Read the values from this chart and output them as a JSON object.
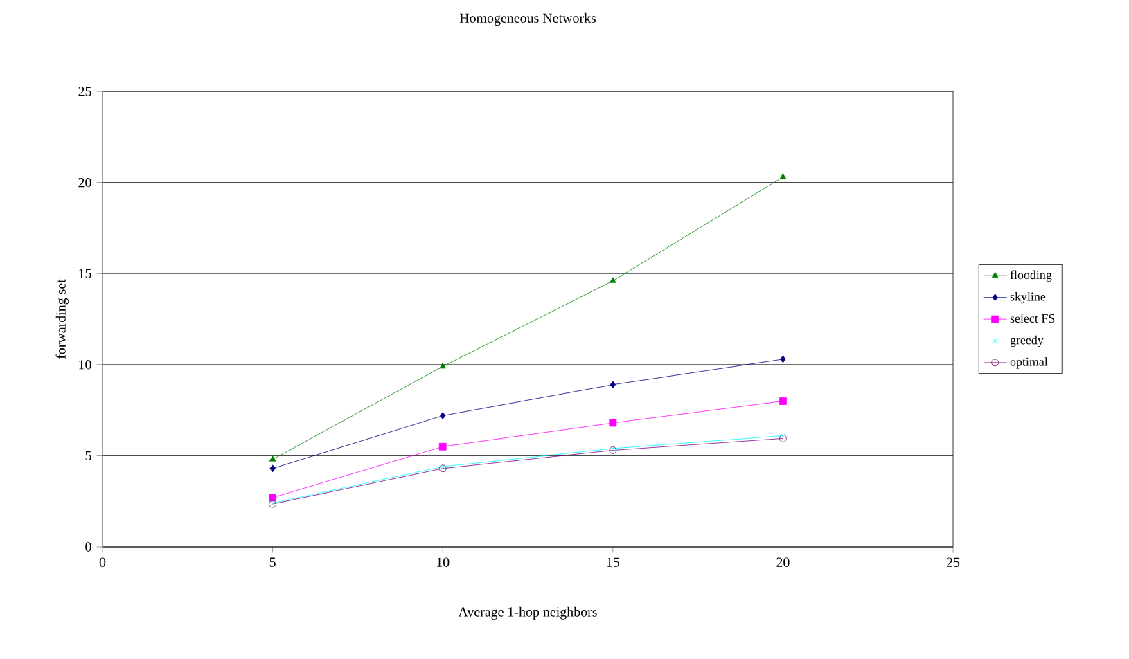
{
  "chart_data": {
    "type": "line",
    "title": "Homogeneous Networks",
    "xlabel": "Average 1-hop neighbors",
    "ylabel": "forwarding set",
    "x": [
      5,
      10,
      15,
      20
    ],
    "xlim": [
      0,
      25
    ],
    "xticks": [
      0,
      5,
      10,
      15,
      20,
      25
    ],
    "ylim": [
      0,
      25
    ],
    "yticks": [
      0,
      5,
      10,
      15,
      20,
      25
    ],
    "grid": "y",
    "legend": "right",
    "series": [
      {
        "name": "flooding",
        "color": "#008000",
        "marker": "triangle",
        "values": [
          4.8,
          9.9,
          14.6,
          20.3
        ]
      },
      {
        "name": "skyline",
        "color": "#000080",
        "marker": "diamond",
        "values": [
          4.3,
          7.2,
          8.9,
          10.3
        ]
      },
      {
        "name": "select FS",
        "color": "#ff00ff",
        "marker": "square",
        "values": [
          2.7,
          5.5,
          6.8,
          8.0
        ]
      },
      {
        "name": "greedy",
        "color": "#00ffff",
        "marker": "cross",
        "values": [
          2.4,
          4.4,
          5.4,
          6.1
        ]
      },
      {
        "name": "optimal",
        "color": "#800080",
        "marker": "circle",
        "values": [
          2.35,
          4.3,
          5.3,
          5.95
        ]
      }
    ]
  }
}
